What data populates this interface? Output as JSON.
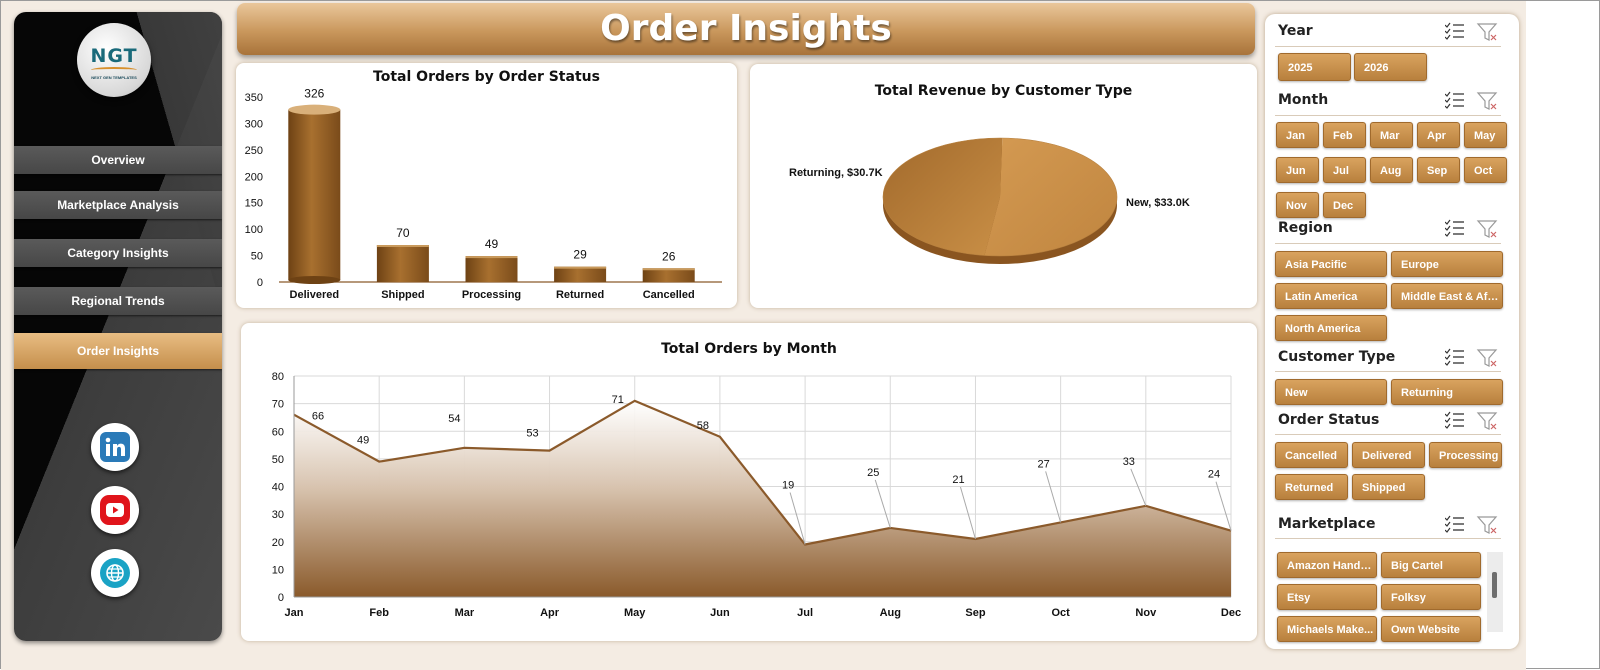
{
  "page": {
    "title": "Order Insights"
  },
  "logo": {
    "text": "NGT",
    "tagline": "NEXT GEN TEMPLATES"
  },
  "sidebar": {
    "items": [
      {
        "label": "Overview"
      },
      {
        "label": "Marketplace Analysis"
      },
      {
        "label": "Category Insights"
      },
      {
        "label": "Regional Trends"
      },
      {
        "label": "Order Insights",
        "active": true
      }
    ],
    "social": [
      "linkedin-icon",
      "youtube-icon",
      "website-globe-icon"
    ]
  },
  "colors": {
    "accent": "#b8803d",
    "accent_light": "#e8bd83",
    "bar": "#8d5a22",
    "line": "#8b5a2b",
    "sidebar": "#0a0a0a"
  },
  "charts": {
    "status": {
      "title": "Total Orders by Order Status",
      "chart_data": {
        "type": "bar",
        "categories": [
          "Delivered",
          "Shipped",
          "Processing",
          "Returned",
          "Cancelled"
        ],
        "values": [
          326,
          70,
          49,
          29,
          26
        ],
        "yticks": [
          "0",
          "50",
          "100",
          "150",
          "200",
          "250",
          "300",
          "350"
        ],
        "ylim": [
          0,
          350
        ]
      }
    },
    "revenue": {
      "title": "Total Revenue by Customer Type",
      "chart_data": {
        "type": "pie",
        "slices": [
          {
            "label": "Returning",
            "value": 30.7,
            "display": "Returning, $30.7K"
          },
          {
            "label": "New",
            "value": 33.0,
            "display": "New, $33.0K"
          }
        ]
      }
    },
    "monthly": {
      "title": "Total Orders by Month",
      "chart_data": {
        "type": "area",
        "categories": [
          "Jan",
          "Feb",
          "Mar",
          "Apr",
          "May",
          "Jun",
          "Jul",
          "Aug",
          "Sep",
          "Oct",
          "Nov",
          "Dec"
        ],
        "values": [
          66,
          49,
          54,
          53,
          71,
          58,
          19,
          25,
          21,
          27,
          33,
          24
        ],
        "yticks": [
          "0",
          "10",
          "20",
          "30",
          "40",
          "50",
          "60",
          "70",
          "80"
        ],
        "ylim": [
          0,
          80
        ],
        "grid": true
      }
    }
  },
  "filters": {
    "year": {
      "title": "Year",
      "items": [
        "2025",
        "2026"
      ]
    },
    "month": {
      "title": "Month",
      "items": [
        "Jan",
        "Feb",
        "Mar",
        "Apr",
        "May",
        "Jun",
        "Jul",
        "Aug",
        "Sep",
        "Oct",
        "Nov",
        "Dec"
      ]
    },
    "region": {
      "title": "Region",
      "items": [
        "Asia Pacific",
        "Europe",
        "Latin America",
        "Middle East & Africa",
        "North America"
      ]
    },
    "customer": {
      "title": "Customer Type",
      "items": [
        "New",
        "Returning"
      ]
    },
    "status": {
      "title": "Order Status",
      "items": [
        "Cancelled",
        "Delivered",
        "Processing",
        "Returned",
        "Shipped"
      ]
    },
    "marketplace": {
      "title": "Marketplace",
      "items": [
        "Amazon Handm...",
        "Big Cartel",
        "Etsy",
        "Folksy",
        "Michaels Make...",
        "Own Website"
      ]
    }
  }
}
